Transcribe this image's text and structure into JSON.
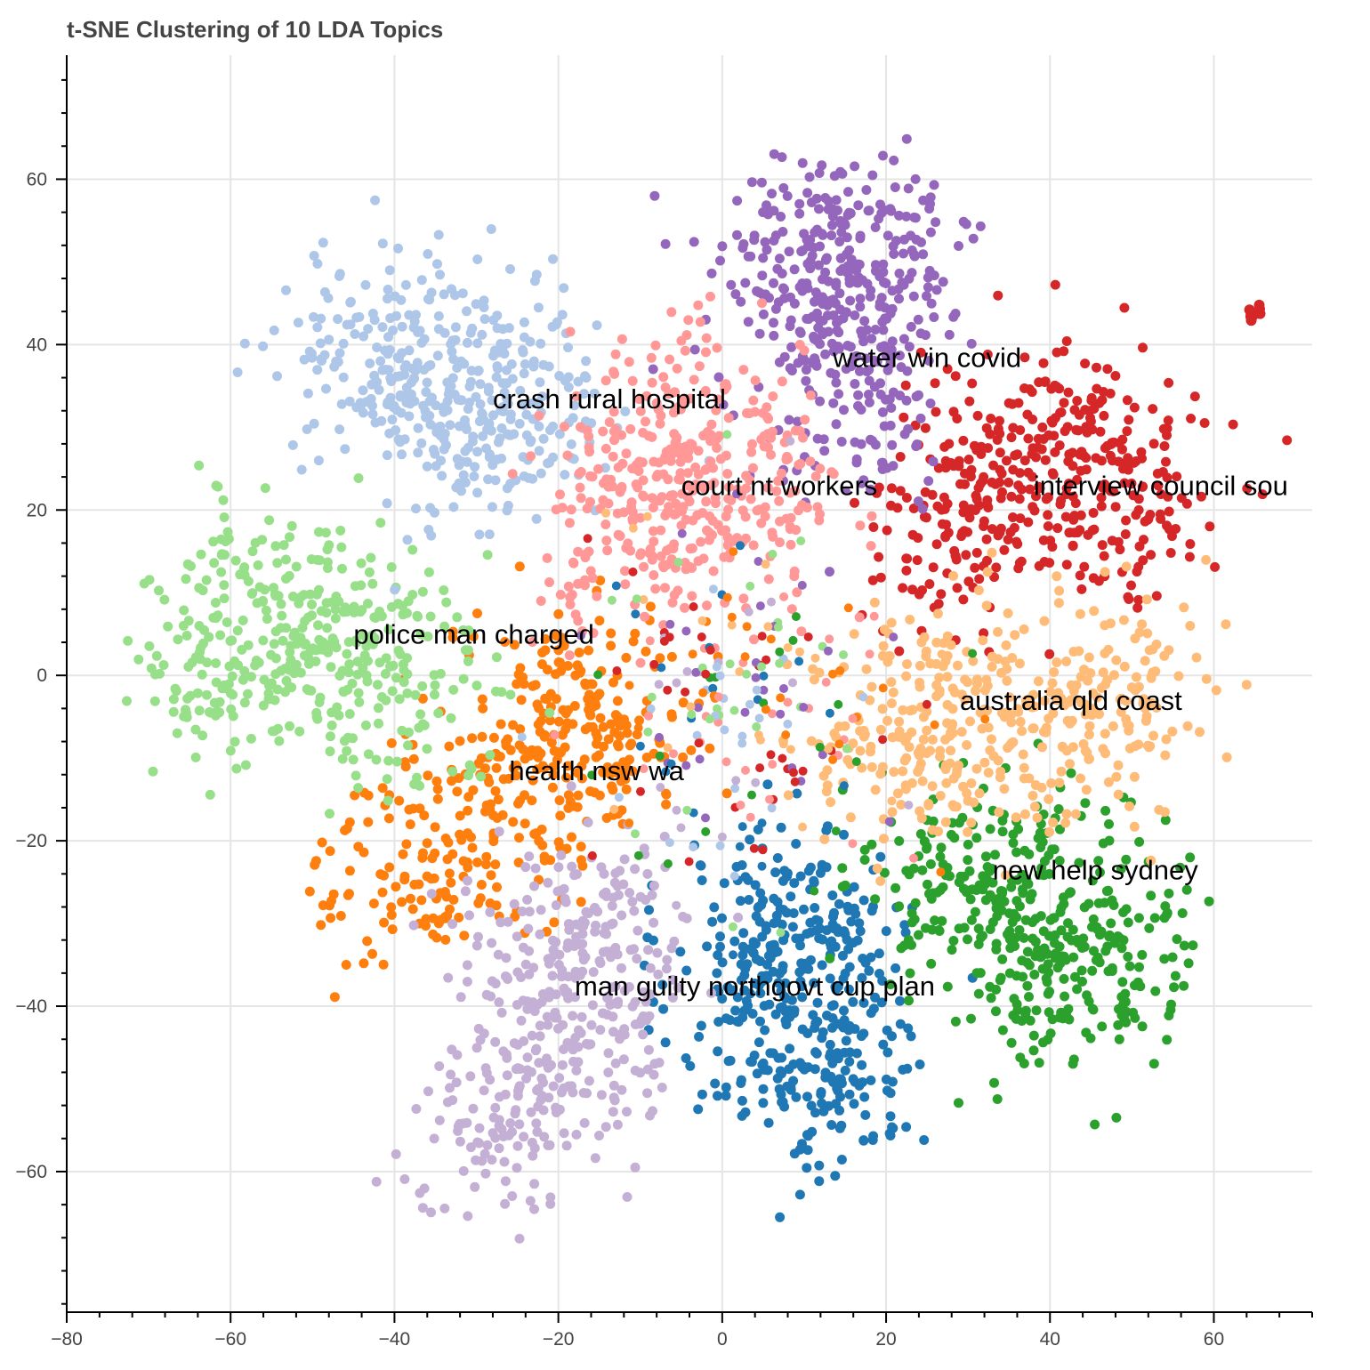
{
  "chart_data": {
    "type": "scatter",
    "title": "t-SNE Clustering of 10 LDA Topics",
    "xlabel": "",
    "ylabel": "",
    "xlim": [
      -80,
      72
    ],
    "ylim": [
      -77,
      75
    ],
    "x_ticks": [
      -80,
      -60,
      -40,
      -20,
      0,
      20,
      40,
      60
    ],
    "y_ticks": [
      -60,
      -40,
      -20,
      0,
      20,
      40,
      60
    ],
    "x_tick_labels": [
      "−80",
      "−60",
      "−40",
      "−20",
      "0",
      "20",
      "40",
      "60"
    ],
    "y_tick_labels": [
      "−60",
      "−40",
      "−20",
      "0",
      "20",
      "40",
      "60"
    ],
    "grid": true,
    "legend": "none",
    "series": [
      {
        "label": "health nsw wa",
        "color": "#1f77b4",
        "core": [
          [
            8,
            -42
          ],
          [
            14,
            -50
          ],
          [
            6,
            -30
          ],
          [
            12,
            -30
          ]
        ],
        "label_pos": [
          -26,
          -11
        ]
      },
      {
        "label": "man guilty north",
        "color": "#ff7f0e",
        "core": [
          [
            -20,
            -8
          ],
          [
            -30,
            -18
          ],
          [
            -38,
            -24
          ],
          [
            -14,
            -4
          ]
        ],
        "label_pos": [
          -18,
          -37
        ]
      },
      {
        "label": "new help sydney",
        "color": "#2ca02c",
        "core": [
          [
            36,
            -28
          ],
          [
            42,
            -38
          ],
          [
            28,
            -24
          ],
          [
            48,
            -32
          ]
        ],
        "label_pos": [
          33,
          -23
        ]
      },
      {
        "label": "interview council south",
        "color": "#d62728",
        "core": [
          [
            36,
            24
          ],
          [
            28,
            18
          ],
          [
            44,
            28
          ],
          [
            50,
            20
          ]
        ],
        "label_pos": [
          38,
          24
        ]
      },
      {
        "label": "water win covid",
        "color": "#9467bd",
        "core": [
          [
            14,
            44
          ],
          [
            20,
            52
          ],
          [
            8,
            50
          ],
          [
            16,
            32
          ]
        ],
        "label_pos": [
          13,
          39
        ]
      },
      {
        "label": "police man charged",
        "color": "#98df8a",
        "core": [
          [
            -48,
            4
          ],
          [
            -56,
            10
          ],
          [
            -40,
            -2
          ],
          [
            -60,
            0
          ]
        ],
        "label_pos": [
          -45,
          5
        ]
      },
      {
        "label": "crash rural hospital",
        "color": "#aec7e8",
        "core": [
          [
            -36,
            36
          ],
          [
            -30,
            28
          ],
          [
            -42,
            42
          ],
          [
            -24,
            34
          ]
        ],
        "label_pos": [
          -28,
          34
        ]
      },
      {
        "label": "court nt workers",
        "color": "#ff9896",
        "core": [
          [
            -4,
            24
          ],
          [
            -12,
            16
          ],
          [
            4,
            20
          ],
          [
            -8,
            30
          ]
        ],
        "label_pos": [
          -5,
          23
        ]
      },
      {
        "label": "govt cup plan",
        "color": "#c5b0d5",
        "core": [
          [
            -18,
            -36
          ],
          [
            -22,
            -46
          ],
          [
            -14,
            -30
          ],
          [
            -26,
            -54
          ]
        ],
        "label_pos": [
          -18,
          -37
        ]
      },
      {
        "label": "australia qld coast",
        "color": "#ffbb78",
        "core": [
          [
            30,
            -6
          ],
          [
            40,
            -4
          ],
          [
            20,
            -8
          ],
          [
            50,
            -2
          ]
        ],
        "label_pos": [
          29,
          -3
        ]
      }
    ],
    "annotations": [
      {
        "text": "water win covid",
        "x": 13.5,
        "y": 38.5
      },
      {
        "text": "crash rural hospital",
        "x": -28,
        "y": 33.5
      },
      {
        "text": "court nt workers",
        "x": -5,
        "y": 23
      },
      {
        "text": "interview council sou",
        "x": 38,
        "y": 23
      },
      {
        "text": "police man charged",
        "x": -45,
        "y": 5
      },
      {
        "text": "australia qld coast",
        "x": 29,
        "y": -3
      },
      {
        "text": "health nsw wa",
        "x": -26,
        "y": -11.5
      },
      {
        "text": "new help sydney",
        "x": 33,
        "y": -23.5
      },
      {
        "text": "man guilty northgovt cup plan",
        "x": -18,
        "y": -37.5
      }
    ]
  }
}
